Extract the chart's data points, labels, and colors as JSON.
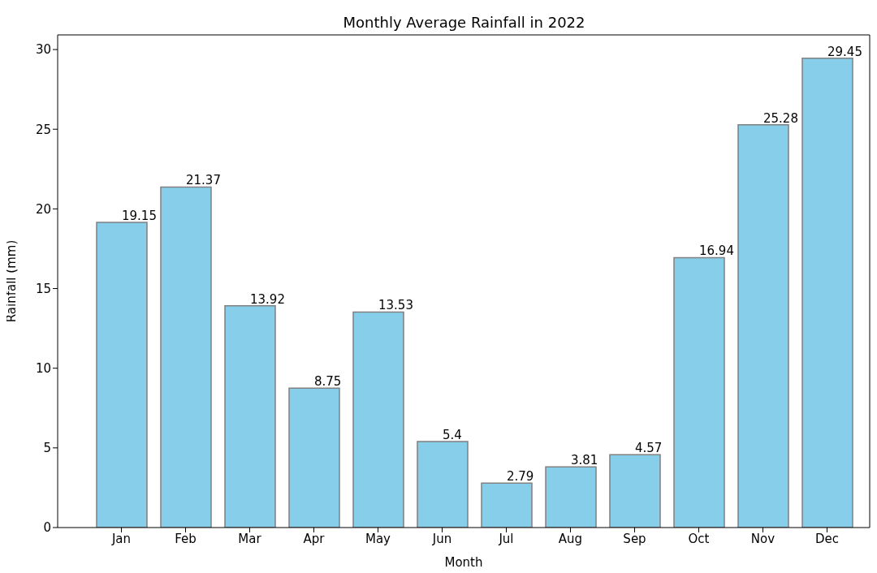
{
  "chart_data": {
    "type": "bar",
    "title": "Monthly Average Rainfall in 2022",
    "xlabel": "Month",
    "ylabel": "Rainfall (mm)",
    "categories": [
      "Jan",
      "Feb",
      "Mar",
      "Apr",
      "May",
      "Jun",
      "Jul",
      "Aug",
      "Sep",
      "Oct",
      "Nov",
      "Dec"
    ],
    "values": [
      19.15,
      21.37,
      13.92,
      8.75,
      13.53,
      5.4,
      2.79,
      3.81,
      4.57,
      16.94,
      25.28,
      29.45
    ],
    "color": "#87ceeb",
    "data_labels": true,
    "ylim": [
      0,
      30.92
    ],
    "yticks": [
      0,
      5,
      10,
      15,
      20,
      25,
      30
    ],
    "grid": false,
    "legend": false
  }
}
